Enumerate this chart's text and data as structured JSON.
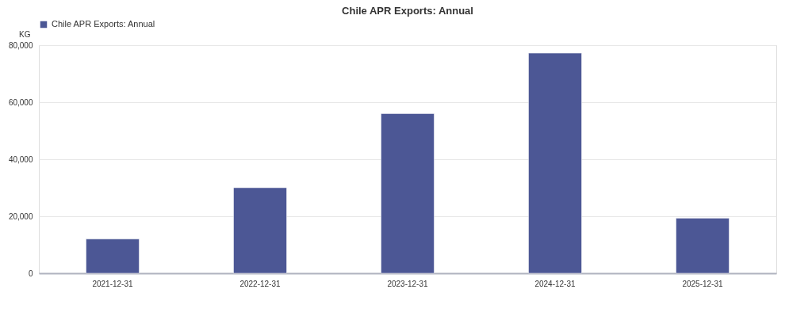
{
  "chart_data": {
    "type": "bar",
    "title": "Chile APR Exports: Annual",
    "ylabel": "KG",
    "categories": [
      "2021-12-31",
      "2022-12-31",
      "2023-12-31",
      "2024-12-31",
      "2025-12-31"
    ],
    "series": [
      {
        "name": "Chile APR Exports: Annual",
        "color": "#4c5795",
        "values": [
          12000,
          30000,
          56000,
          77200,
          19300
        ]
      }
    ],
    "ylim": [
      0,
      80000
    ],
    "yticks": [
      0,
      {
        "value": 20000,
        "label": "20,000"
      },
      {
        "value": 40000,
        "label": "40,000"
      },
      {
        "value": 60000,
        "label": "60,000"
      },
      {
        "value": 80000,
        "label": "80,000"
      }
    ],
    "grid": "y",
    "legend": "top"
  }
}
